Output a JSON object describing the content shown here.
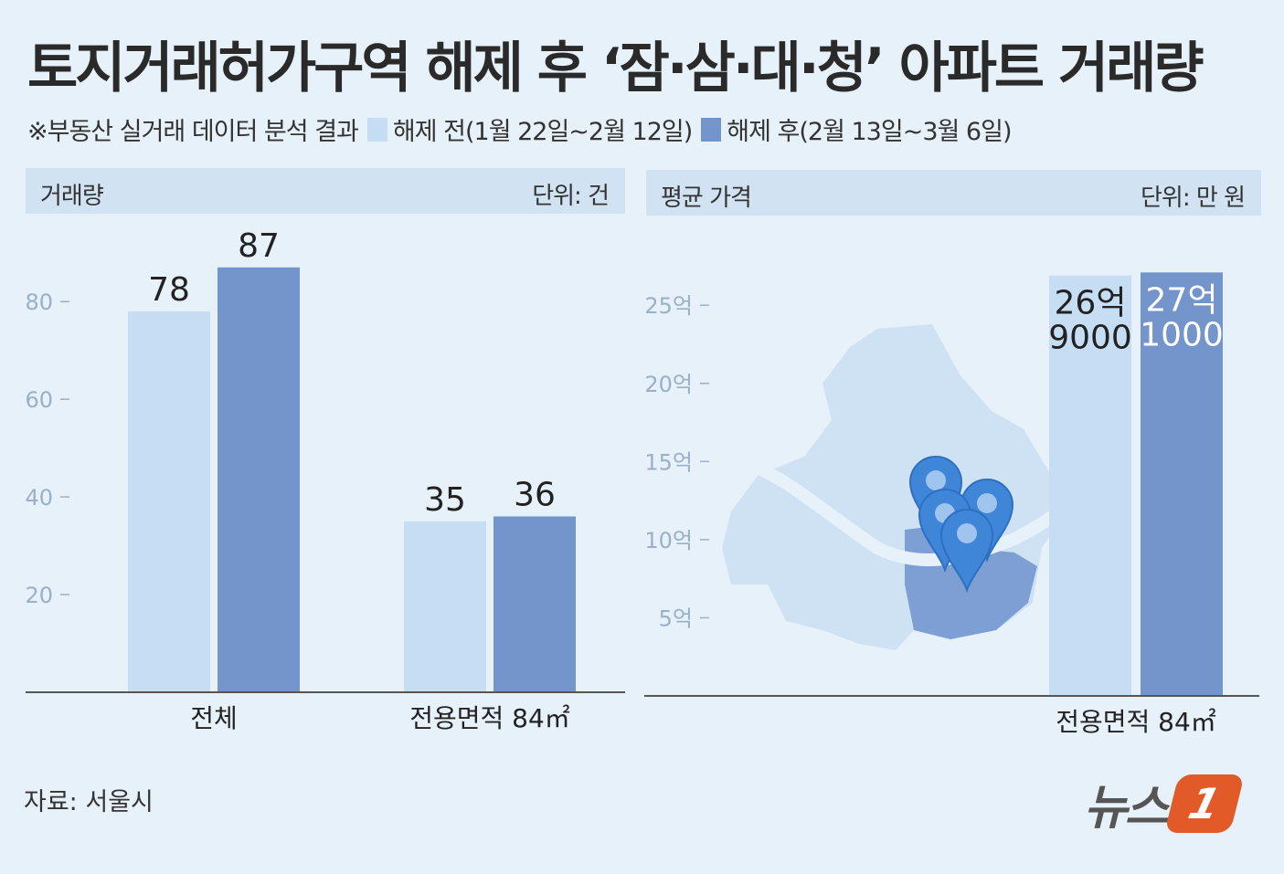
{
  "title": "토지거래허가구역 해제 후 ‘잠·삼·대·청’ 아파트 거래량",
  "subtitle": {
    "note": "※부동산 실거래 데이터 분석 결과",
    "legend_before": "해제 전(1월 22일~2월 12일)",
    "legend_after": "해제 후(2월 13일~3월 6일)"
  },
  "colors": {
    "before": "#c6def3",
    "after": "#7495cc",
    "background": "#e7f1fa"
  },
  "left_panel": {
    "title": "거래량",
    "unit": "단위: 건"
  },
  "right_panel": {
    "title": "평균 가격",
    "unit": "단위: 만 원"
  },
  "chart_data": [
    {
      "type": "bar",
      "title": "거래량",
      "unit": "단위: 건",
      "categories": [
        "전체",
        "전용면적 84㎡"
      ],
      "series": [
        {
          "name": "해제 전(1월 22일~2월 12일)",
          "values": [
            78,
            35
          ]
        },
        {
          "name": "해제 후(2월 13일~3월 6일)",
          "values": [
            87,
            36
          ]
        }
      ],
      "data_labels": [
        [
          "78",
          "35"
        ],
        [
          "87",
          "36"
        ]
      ],
      "y_ticks": [
        20,
        40,
        60,
        80
      ],
      "y_tick_labels": [
        "20",
        "40",
        "60",
        "80"
      ],
      "ylim": [
        0,
        95
      ],
      "grid": false
    },
    {
      "type": "bar",
      "title": "평균 가격",
      "unit": "단위: 만 원",
      "categories": [
        "전용면적 84㎡"
      ],
      "series": [
        {
          "name": "해제 전(1월 22일~2월 12일)",
          "values": [
            269000
          ]
        },
        {
          "name": "해제 후(2월 13일~3월 6일)",
          "values": [
            271000
          ]
        }
      ],
      "data_labels": [
        [
          "26억\n9000"
        ],
        [
          "27억\n1000"
        ]
      ],
      "y_ticks": [
        50000,
        100000,
        150000,
        200000,
        250000
      ],
      "y_tick_labels": [
        "5억",
        "10억",
        "15억",
        "20억",
        "25억"
      ],
      "ylim": [
        0,
        270000
      ],
      "grid": false
    }
  ],
  "map_icon": "seoul-map-with-location-pins",
  "source": "자료: 서울시",
  "logo": {
    "text": "뉴스",
    "badge": "1"
  }
}
